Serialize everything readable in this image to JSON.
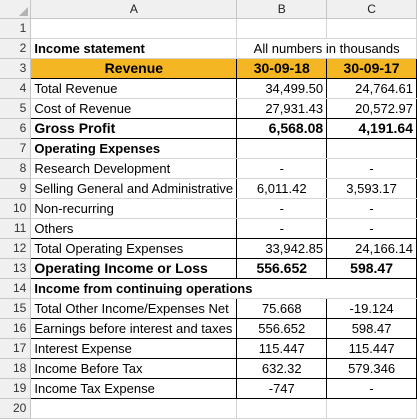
{
  "columns": [
    "A",
    "B",
    "C"
  ],
  "row_numbers": [
    "1",
    "2",
    "3",
    "4",
    "5",
    "6",
    "7",
    "8",
    "9",
    "10",
    "11",
    "12",
    "13",
    "14",
    "15",
    "16",
    "17",
    "18",
    "19",
    "20"
  ],
  "header": {
    "title": "Income statement",
    "units_note": "All numbers in thousands",
    "revenue_label": "Revenue",
    "date1": "30-09-18",
    "date2": "30-09-17"
  },
  "rows": [
    {
      "label": "Total Revenue",
      "v1": "34,499.50",
      "v2": "24,764.61"
    },
    {
      "label": "Cost of Revenue",
      "v1": "27,931.43",
      "v2": "20,572.97"
    },
    {
      "label": "Gross Profit",
      "v1": "6,568.08",
      "v2": "4,191.64"
    },
    {
      "label": "Operating Expenses",
      "v1": "",
      "v2": ""
    },
    {
      "label": "Research Development",
      "v1": "-",
      "v2": "-"
    },
    {
      "label": "Selling General and Administrative",
      "v1": "6,011.42",
      "v2": "3,593.17"
    },
    {
      "label": "Non-recurring",
      "v1": "-",
      "v2": "-"
    },
    {
      "label": "Others",
      "v1": "-",
      "v2": "-"
    },
    {
      "label": "Total Operating Expenses",
      "v1": "33,942.85",
      "v2": "24,166.14"
    },
    {
      "label": "Operating Income or Loss",
      "v1": "556.652",
      "v2": "598.47"
    },
    {
      "label": "Income from continuing operations",
      "v1": "",
      "v2": ""
    },
    {
      "label": "Total Other Income/Expenses Net",
      "v1": "75.668",
      "v2": "-19.124"
    },
    {
      "label": "Earnings before interest and taxes",
      "v1": "556.652",
      "v2": "598.47"
    },
    {
      "label": "Interest Expense",
      "v1": "115.447",
      "v2": "115.447"
    },
    {
      "label": "Income Before Tax",
      "v1": "632.32",
      "v2": "579.346"
    },
    {
      "label": "Income Tax Expense",
      "v1": "-747",
      "v2": "-"
    }
  ],
  "colors": {
    "header_fill": "#f4b622",
    "chrome": "#f0f0f0",
    "gridline": "#d4d4d4"
  }
}
